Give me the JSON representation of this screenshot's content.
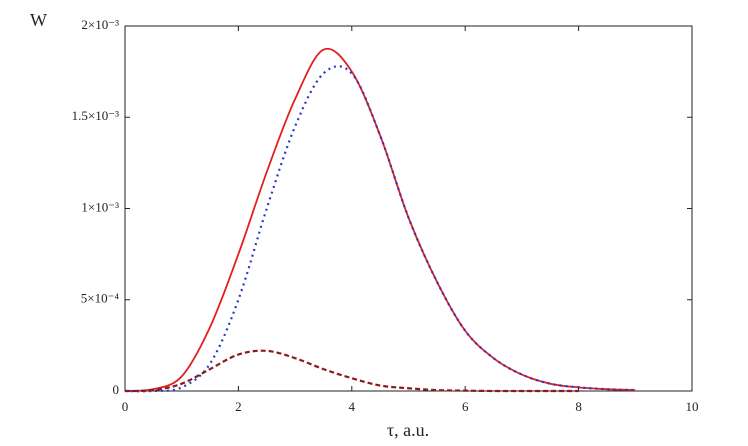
{
  "chart_data": {
    "type": "line",
    "ylabel": "W",
    "xlabel": "τ, a.u.",
    "x": [
      0,
      0.5,
      1,
      1.5,
      2,
      2.5,
      3,
      3.5,
      4,
      4.5,
      5,
      5.5,
      6,
      6.5,
      7,
      7.5,
      8,
      8.5,
      9,
      9.5,
      10
    ],
    "series": [
      {
        "color": "#e02020",
        "dash": "solid",
        "values": [
          0,
          1e-05,
          8e-05,
          0.00035,
          0.00075,
          0.0012,
          0.0016,
          0.00187,
          0.00175,
          0.0014,
          0.00095,
          0.0006,
          0.00033,
          0.00018,
          9e-05,
          4e-05,
          2e-05,
          1e-05,
          5e-06,
          null,
          null
        ]
      },
      {
        "color": "#2838c8",
        "dash": "dotted",
        "values": [
          0,
          0,
          2e-05,
          0.00015,
          0.0005,
          0.001,
          0.00145,
          0.00174,
          0.00174,
          0.0014,
          0.00095,
          0.0006,
          0.00033,
          0.00018,
          9e-05,
          4e-05,
          2e-05,
          1e-05,
          5e-06,
          null,
          null
        ]
      },
      {
        "color": "#8b1a1a",
        "dash": "dashed",
        "values": [
          0,
          5e-06,
          4e-05,
          0.00012,
          0.0002,
          0.00022,
          0.00018,
          0.00012,
          7e-05,
          3e-05,
          1.5e-05,
          5e-06,
          2e-06,
          0,
          0,
          0,
          0,
          null,
          null,
          null,
          null
        ]
      }
    ],
    "xlim": [
      0,
      10
    ],
    "xticks": [
      0,
      2,
      4,
      6,
      8,
      10
    ],
    "ylim": [
      0,
      0.002
    ],
    "yticks": [
      0,
      {
        "value": 0.0005,
        "label": "5×10⁻⁴"
      },
      {
        "value": 0.001,
        "label": "1×10⁻³"
      },
      {
        "value": 0.0015,
        "label": "1.5×10⁻³"
      },
      {
        "value": 0.002,
        "label": "2×10⁻³"
      }
    ]
  }
}
